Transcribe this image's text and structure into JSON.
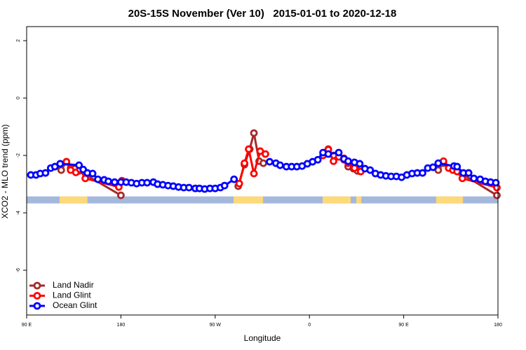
{
  "chart_data": {
    "type": "line",
    "title": "20S-15S November (Ver 10)   2015-01-01 to 2020-12-18",
    "x_label": "Longitude",
    "y_label": "XCO2 - MLO trend (ppm)",
    "xlim": [
      90,
      540
    ],
    "ylim": [
      -7.56,
      2.49
    ],
    "xticks": [
      {
        "value": 90,
        "label": "90 E"
      },
      {
        "value": 180,
        "label": "180"
      },
      {
        "value": 270,
        "label": "90 W"
      },
      {
        "value": 360,
        "label": "0"
      },
      {
        "value": 450,
        "label": "90 E"
      },
      {
        "value": 540,
        "label": "180"
      }
    ],
    "yticks": [
      2,
      0,
      -2,
      -4,
      -6
    ],
    "legend": "bottom-left",
    "surface_strip": {
      "y": -3.55,
      "ocean_color": "#a4b8dc",
      "land_color": "#fdd97a",
      "land": [
        [
          121.5,
          148
        ],
        [
          287.6,
          315.7
        ],
        [
          372.6,
          399.4
        ],
        [
          404.8,
          409.5
        ],
        [
          481,
          506.6
        ]
      ]
    },
    "series": [
      {
        "name": "Land Nadir",
        "color": "#a52a2a",
        "x": [
          123,
          128,
          132,
          136,
          140,
          180,
          null,
          292,
          298,
          303,
          307,
          312,
          316,
          null,
          378,
          383,
          393,
          397,
          402,
          406,
          null,
          483,
          488,
          493,
          497,
          502,
          539
        ],
        "values": [
          -2.51,
          -2.22,
          -2.44,
          -2.46,
          -2.54,
          -3.39,
          null,
          -3.07,
          -2.32,
          -1.78,
          -1.22,
          -2.2,
          -2.27,
          null,
          -1.78,
          -2.0,
          -2.15,
          -2.39,
          -2.46,
          -2.54,
          null,
          -2.51,
          -2.27,
          -2.44,
          -2.49,
          -2.56,
          -3.39
        ]
      },
      {
        "name": "Land Glint",
        "color": "#ff0000",
        "x": [
          128,
          132,
          137,
          141,
          146,
          178,
          181,
          null,
          293,
          298,
          302,
          307,
          313,
          318,
          null,
          373,
          378,
          383,
          388,
          393,
          397,
          403,
          409,
          null,
          488,
          493,
          497,
          501,
          506,
          539
        ],
        "values": [
          -2.22,
          -2.51,
          -2.59,
          -2.49,
          -2.8,
          -3.1,
          -2.88,
          null,
          -2.98,
          -2.27,
          -1.78,
          -2.63,
          -1.85,
          -1.95,
          null,
          -2.0,
          -1.8,
          -2.2,
          -2.05,
          -2.1,
          -2.27,
          -2.44,
          -2.56,
          null,
          -2.2,
          -2.44,
          -2.51,
          -2.56,
          -2.8,
          -3.12
        ]
      },
      {
        "name": "Ocean Glint",
        "color": "#0000ff",
        "x": [
          94,
          99,
          103,
          108,
          113,
          117,
          122,
          140,
          144,
          148,
          153,
          158,
          164,
          168,
          174,
          180,
          185,
          190,
          195,
          200,
          205,
          211,
          215,
          220,
          225,
          230,
          235,
          240,
          245,
          251,
          255,
          260,
          265,
          270,
          275,
          279,
          288,
          null,
          322,
          328,
          332,
          338,
          343,
          348,
          353,
          358,
          363,
          368,
          373,
          378,
          388,
          393,
          397,
          403,
          408,
          413,
          418,
          423,
          428,
          433,
          438,
          443,
          448,
          453,
          458,
          463,
          468,
          473,
          478,
          483,
          498,
          501,
          507,
          512,
          517,
          523,
          528,
          533,
          538
        ],
        "values": [
          -2.68,
          -2.68,
          -2.63,
          -2.61,
          -2.44,
          -2.39,
          -2.29,
          -2.34,
          -2.49,
          -2.61,
          -2.63,
          -2.83,
          -2.85,
          -2.9,
          -2.93,
          -2.93,
          -2.93,
          -2.95,
          -2.98,
          -2.95,
          -2.95,
          -2.93,
          -3.0,
          -3.02,
          -3.05,
          -3.07,
          -3.1,
          -3.12,
          -3.12,
          -3.15,
          -3.15,
          -3.17,
          -3.15,
          -3.15,
          -3.12,
          -3.05,
          -2.83,
          null,
          -2.22,
          -2.27,
          -2.34,
          -2.39,
          -2.39,
          -2.39,
          -2.37,
          -2.29,
          -2.22,
          -2.15,
          -1.9,
          -1.95,
          -1.9,
          -2.12,
          -2.2,
          -2.24,
          -2.29,
          -2.46,
          -2.51,
          -2.63,
          -2.68,
          -2.71,
          -2.73,
          -2.73,
          -2.76,
          -2.68,
          -2.63,
          -2.61,
          -2.61,
          -2.44,
          -2.41,
          -2.27,
          -2.37,
          -2.39,
          -2.61,
          -2.61,
          -2.8,
          -2.83,
          -2.9,
          -2.93,
          -2.95
        ]
      }
    ]
  }
}
